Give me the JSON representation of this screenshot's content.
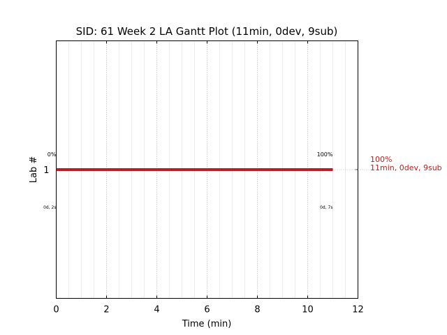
{
  "chart_data": {
    "type": "gantt",
    "title": "SID: 61 Week 2 LA Gantt Plot (11min, 0dev, 9sub)",
    "xlabel": "Time (min)",
    "ylabel": "Lab #",
    "xlim": [
      0,
      12
    ],
    "ylim": [
      0,
      2
    ],
    "x_ticks": [
      "0",
      "2",
      "4",
      "6",
      "8",
      "10",
      "12"
    ],
    "y_ticks": [
      "1"
    ],
    "grid": true,
    "bar_color": "#b22222",
    "bars": [
      {
        "lab": 1,
        "start": 0,
        "end": 11,
        "start_pct_label": "0%",
        "end_pct_label": "100%",
        "start_time_label": "0d, 2s",
        "end_time_label": "0d, 7s",
        "summary_pct": "100%",
        "summary_text": "11min, 0dev, 9sub"
      }
    ]
  }
}
